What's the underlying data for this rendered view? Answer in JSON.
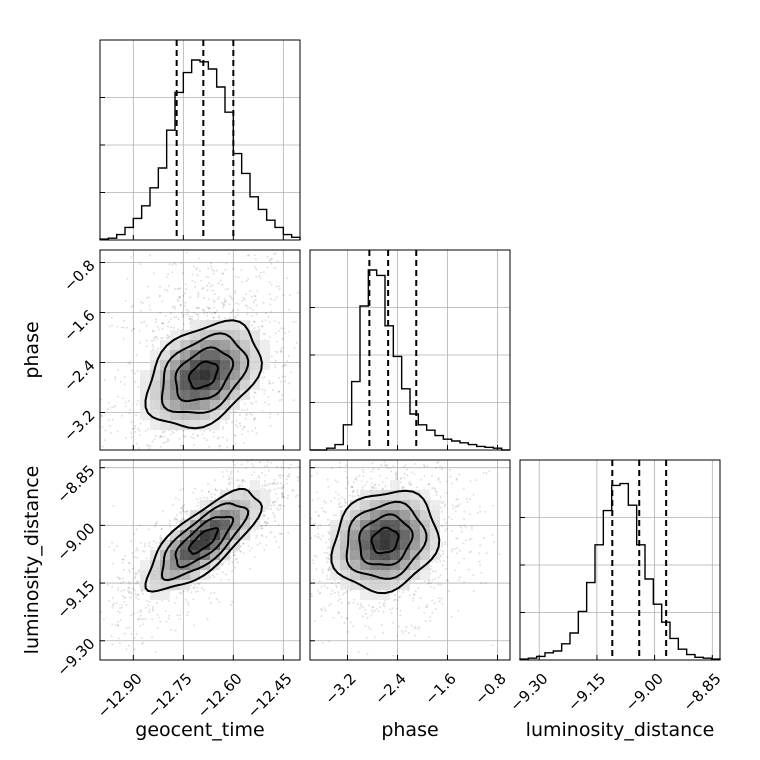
{
  "chart_data": {
    "type": "corner",
    "parameters": [
      "geocent_time",
      "phase",
      "luminosity_distance"
    ],
    "ranges": {
      "geocent_time": [
        -13.0,
        -12.4
      ],
      "phase": [
        -3.8,
        -0.6
      ],
      "luminosity_distance": [
        -9.35,
        -8.83
      ]
    },
    "ticks": {
      "geocent_time": [
        "-12.90",
        "-12.75",
        "-12.60",
        "-12.45"
      ],
      "phase": [
        "-3.2",
        "-2.4",
        "-1.6",
        "-0.8"
      ],
      "luminosity_distance": [
        "-9.30",
        "-9.15",
        "-9.00",
        "-8.85"
      ]
    },
    "quantiles": {
      "geocent_time": [
        -12.77,
        -12.69,
        -12.6
      ],
      "phase": [
        -2.85,
        -2.55,
        -2.1
      ],
      "luminosity_distance": [
        -9.11,
        -9.04,
        -8.97
      ]
    },
    "histograms": {
      "geocent_time": [
        0.005,
        0.01,
        0.03,
        0.07,
        0.12,
        0.19,
        0.29,
        0.4,
        0.61,
        0.82,
        0.93,
        1.0,
        0.99,
        0.95,
        0.85,
        0.71,
        0.48,
        0.37,
        0.24,
        0.17,
        0.11,
        0.07,
        0.03,
        0.015
      ],
      "phase": [
        0.0,
        0.0,
        0.01,
        0.03,
        0.14,
        0.38,
        0.8,
        1.0,
        0.97,
        0.69,
        0.52,
        0.34,
        0.2,
        0.14,
        0.11,
        0.08,
        0.06,
        0.05,
        0.04,
        0.03,
        0.02,
        0.015,
        0.01,
        0.0
      ],
      "luminosity_distance": [
        0.005,
        0.01,
        0.02,
        0.04,
        0.05,
        0.09,
        0.15,
        0.27,
        0.43,
        0.64,
        0.83,
        0.97,
        0.98,
        0.86,
        0.64,
        0.45,
        0.31,
        0.21,
        0.12,
        0.06,
        0.03,
        0.015,
        0.01,
        0.005
      ]
    },
    "correlations": {
      "phase|geocent_time": 0.35,
      "luminosity_distance|geocent_time": 0.75,
      "luminosity_distance|phase": 0.15
    },
    "centers": {
      "geocent_time": -12.69,
      "phase": -2.6,
      "luminosity_distance": -9.04
    },
    "spreads": {
      "geocent_time": 0.085,
      "phase": 0.42,
      "luminosity_distance": 0.065
    },
    "grid": true
  }
}
